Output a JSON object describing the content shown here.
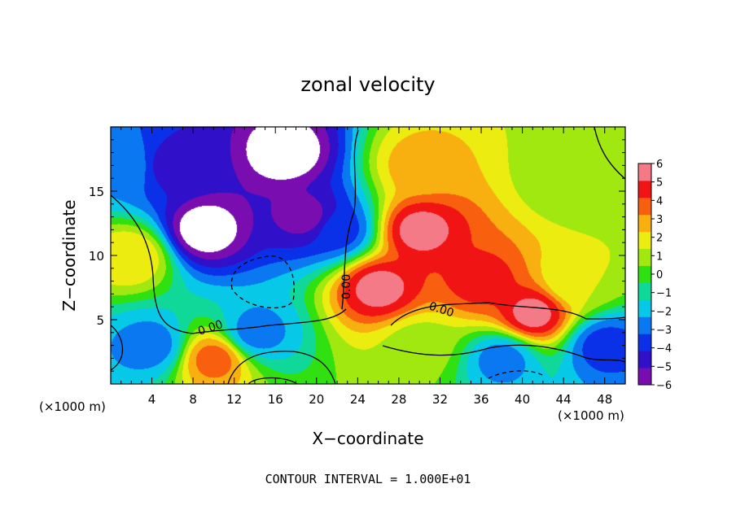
{
  "chart_data": {
    "type": "heatmap",
    "title": "zonal velocity",
    "xlabel": "X−coordinate",
    "ylabel": "Z−coordinate",
    "x_unit_left": "(×1000 m)",
    "x_unit_right": "(×1000 m)",
    "xlim": [
      0,
      50
    ],
    "ylim": [
      0,
      20
    ],
    "x_ticks": [
      4,
      8,
      12,
      16,
      20,
      24,
      28,
      32,
      36,
      40,
      44,
      48
    ],
    "y_ticks": [
      5,
      10,
      15
    ],
    "colorbar": {
      "ticks": [
        6,
        5,
        4,
        3,
        2,
        1,
        0,
        -1,
        -2,
        -3,
        -4,
        -5,
        -6
      ],
      "tick_labels": [
        "6",
        "5",
        "4",
        "3",
        "2",
        "1",
        "0",
        "−1",
        "−2",
        "−3",
        "−4",
        "−5",
        "−6"
      ],
      "range": [
        -6,
        6
      ],
      "colors": [
        "#7a0db0",
        "#3010c8",
        "#0a30e8",
        "#0a78f0",
        "#08c8e8",
        "#10d898",
        "#30e010",
        "#a0e810",
        "#ecec10",
        "#f8b010",
        "#f86010",
        "#f01414",
        "#f47a88"
      ]
    },
    "contour_labels": [
      "0.00",
      "0.00",
      "0.00"
    ],
    "footer": "CONTOUR INTERVAL = 1.000E+01",
    "field_samples": [
      {
        "x": 2,
        "z": 10,
        "value": 2.5
      },
      {
        "x": 1,
        "z": 17,
        "value": -2.5
      },
      {
        "x": 4,
        "z": 3,
        "value": -3
      },
      {
        "x": 6,
        "z": 17,
        "value": -5
      },
      {
        "x": 9,
        "z": 12,
        "value": -7
      },
      {
        "x": 14,
        "z": 4,
        "value": -3
      },
      {
        "x": 17,
        "z": 18,
        "value": -7
      },
      {
        "x": 19,
        "z": 13,
        "value": -6
      },
      {
        "x": 22,
        "z": 12,
        "value": -4
      },
      {
        "x": 30,
        "z": 12,
        "value": 6
      },
      {
        "x": 26,
        "z": 7.5,
        "value": 6
      },
      {
        "x": 36,
        "z": 8,
        "value": 5
      },
      {
        "x": 41,
        "z": 5.5,
        "value": 6
      },
      {
        "x": 30,
        "z": 17,
        "value": 3
      },
      {
        "x": 45,
        "z": 16,
        "value": 0.5
      },
      {
        "x": 45,
        "z": 8,
        "value": 1.5
      },
      {
        "x": 30,
        "z": 3,
        "value": 1
      },
      {
        "x": 38,
        "z": 2,
        "value": -3
      },
      {
        "x": 48,
        "z": 3,
        "value": -4
      },
      {
        "x": 10,
        "z": 2,
        "value": 4
      }
    ]
  }
}
